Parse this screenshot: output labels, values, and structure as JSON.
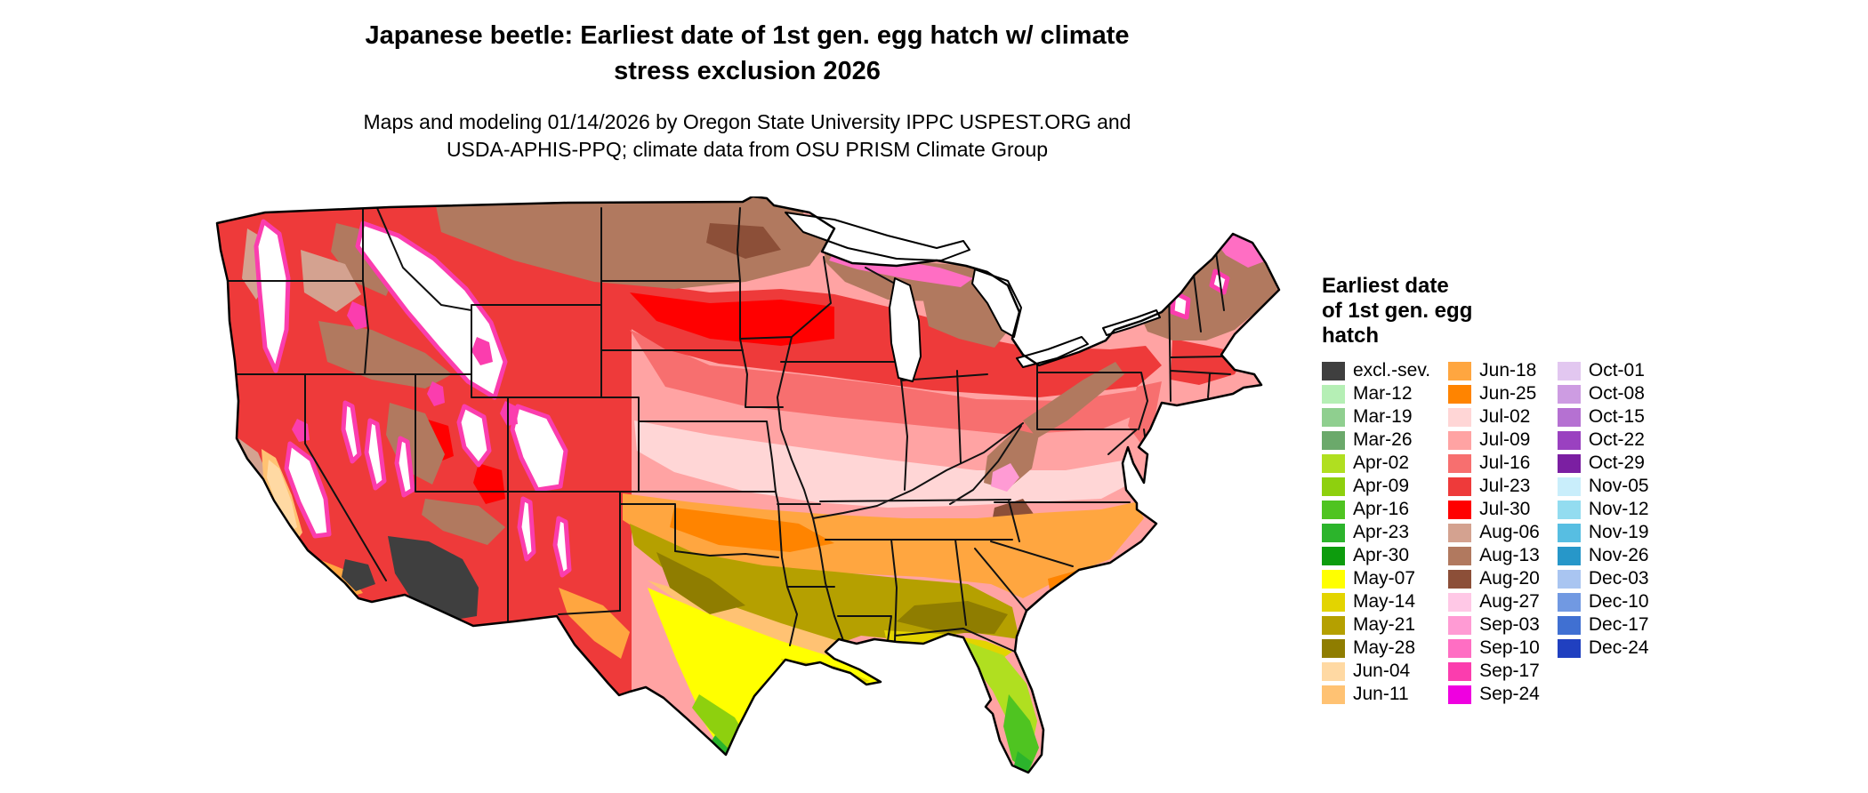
{
  "header": {
    "title_lines": [
      "Japanese beetle: Earliest date of 1st gen. egg hatch w/ climate",
      "stress exclusion 2026"
    ],
    "subtitle_lines": [
      "Maps and modeling 01/14/2026 by Oregon State University IPPC USPEST.ORG and",
      "USDA-APHIS-PPQ; climate data from OSU PRISM Climate Group"
    ]
  },
  "legend": {
    "title_lines": [
      "Earliest date",
      "of 1st gen. egg",
      "hatch"
    ],
    "columns": [
      [
        {
          "label": "excl.-sev.",
          "color": "#3f3f3f"
        },
        {
          "label": "Mar-12",
          "color": "#b5efb5"
        },
        {
          "label": "Mar-19",
          "color": "#8fcf8f"
        },
        {
          "label": "Mar-26",
          "color": "#6ba96b"
        },
        {
          "label": "Apr-02",
          "color": "#b0df20"
        },
        {
          "label": "Apr-09",
          "color": "#8ed00e"
        },
        {
          "label": "Apr-16",
          "color": "#4fc421"
        },
        {
          "label": "Apr-23",
          "color": "#2cb42c"
        },
        {
          "label": "Apr-30",
          "color": "#0d9c0d"
        },
        {
          "label": "May-07",
          "color": "#ffff00"
        },
        {
          "label": "May-14",
          "color": "#e3d400"
        },
        {
          "label": "May-21",
          "color": "#b5a000"
        },
        {
          "label": "May-28",
          "color": "#8f7d00"
        },
        {
          "label": "Jun-04",
          "color": "#ffd9a3"
        },
        {
          "label": "Jun-11",
          "color": "#ffc273"
        }
      ],
      [
        {
          "label": "Jun-18",
          "color": "#ffa640"
        },
        {
          "label": "Jun-25",
          "color": "#ff8400"
        },
        {
          "label": "Jul-02",
          "color": "#ffd6d6"
        },
        {
          "label": "Jul-09",
          "color": "#ffa3a3"
        },
        {
          "label": "Jul-16",
          "color": "#f76f6f"
        },
        {
          "label": "Jul-23",
          "color": "#ee3a3a"
        },
        {
          "label": "Jul-30",
          "color": "#ff0000"
        },
        {
          "label": "Aug-06",
          "color": "#d4a290"
        },
        {
          "label": "Aug-13",
          "color": "#b1795f"
        },
        {
          "label": "Aug-20",
          "color": "#8c4f38"
        },
        {
          "label": "Aug-27",
          "color": "#ffc8e6"
        },
        {
          "label": "Sep-03",
          "color": "#ff9bd4"
        },
        {
          "label": "Sep-10",
          "color": "#ff6ec3"
        },
        {
          "label": "Sep-17",
          "color": "#fb3dae"
        },
        {
          "label": "Sep-24",
          "color": "#ef00e0"
        }
      ],
      [
        {
          "label": "Oct-01",
          "color": "#e2c7f0"
        },
        {
          "label": "Oct-08",
          "color": "#cd9ce2"
        },
        {
          "label": "Oct-15",
          "color": "#b571d2"
        },
        {
          "label": "Oct-22",
          "color": "#9a41c0"
        },
        {
          "label": "Oct-29",
          "color": "#7b1fa2"
        },
        {
          "label": "Nov-05",
          "color": "#c9eefb"
        },
        {
          "label": "Nov-12",
          "color": "#93dcf0"
        },
        {
          "label": "Nov-19",
          "color": "#57bee2"
        },
        {
          "label": "Nov-26",
          "color": "#2797c9"
        },
        {
          "label": "Dec-03",
          "color": "#a9c5f1"
        },
        {
          "label": "Dec-10",
          "color": "#7199e2"
        },
        {
          "label": "Dec-17",
          "color": "#4070d2"
        },
        {
          "label": "Dec-24",
          "color": "#2040c0"
        }
      ]
    ]
  }
}
